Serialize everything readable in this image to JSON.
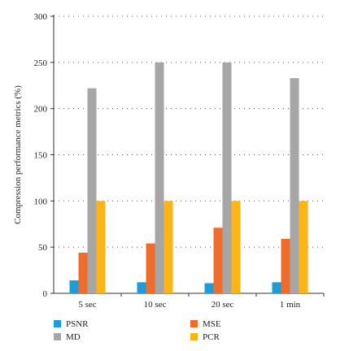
{
  "chart_data": {
    "type": "bar",
    "title": "",
    "xlabel": "",
    "ylabel": "Compression performance metrics (%)",
    "ylim": [
      0,
      300
    ],
    "yticks": [
      0,
      50,
      100,
      150,
      200,
      250,
      300
    ],
    "categories": [
      "5 sec",
      "10 sec",
      "20 sec",
      "1 min"
    ],
    "series": [
      {
        "name": "PSNR",
        "color": "#1f9bd7",
        "values": [
          14,
          12,
          11,
          12
        ]
      },
      {
        "name": "MSE",
        "color": "#ef6c2a",
        "values": [
          44,
          54,
          71,
          59
        ]
      },
      {
        "name": "MD",
        "color": "#a6a6a6",
        "values": [
          222,
          250,
          250,
          233
        ]
      },
      {
        "name": "PCR",
        "color": "#fdb515",
        "values": [
          100,
          100,
          100,
          100
        ]
      }
    ],
    "grid": true,
    "legend_position": "bottom"
  }
}
